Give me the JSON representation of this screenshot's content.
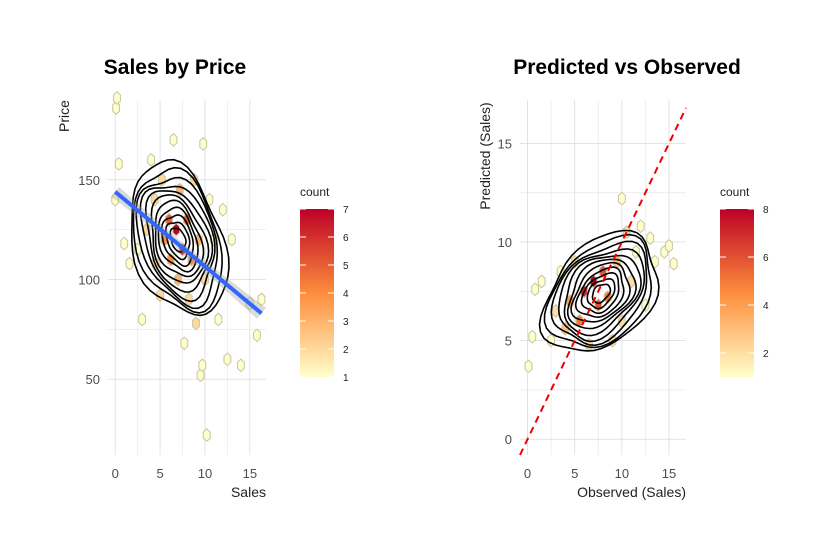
{
  "chart_data": [
    {
      "type": "scatter",
      "subtype": "hexbin-density-contour-with-regression",
      "title": "Sales by Price",
      "xlabel": "Sales",
      "ylabel": "Price",
      "xlim": [
        -0.8,
        16.8
      ],
      "ylim": [
        12,
        190
      ],
      "xticks": [
        0,
        5,
        10,
        15
      ],
      "yticks": [
        50,
        100,
        150
      ],
      "grid": true,
      "legend": {
        "title": "count",
        "position": "right",
        "min": 1,
        "max": 7,
        "ticks": [
          1,
          2,
          3,
          4,
          5,
          6,
          7
        ]
      },
      "colors": {
        "low": "#ffffcc",
        "mid": "#fd8d3c",
        "high": "#bd0026",
        "regression": "#3366ff",
        "contour": "#000000"
      },
      "density_center": [
        7.0,
        120
      ],
      "density_spread": [
        2.4,
        17
      ],
      "density_correlation": -0.3,
      "regression_line": {
        "x": [
          0,
          16.3
        ],
        "y": [
          144,
          83
        ]
      },
      "hexbins": [
        {
          "x": 0.0,
          "y": 140,
          "count": 1
        },
        {
          "x": 0.1,
          "y": 186,
          "count": 1
        },
        {
          "x": 0.2,
          "y": 191,
          "count": 1
        },
        {
          "x": 0.4,
          "y": 158,
          "count": 1
        },
        {
          "x": 1.0,
          "y": 118,
          "count": 1
        },
        {
          "x": 1.6,
          "y": 108,
          "count": 1
        },
        {
          "x": 2.5,
          "y": 115,
          "count": 1
        },
        {
          "x": 3.0,
          "y": 80,
          "count": 1
        },
        {
          "x": 3.5,
          "y": 125,
          "count": 2
        },
        {
          "x": 4.0,
          "y": 160,
          "count": 1
        },
        {
          "x": 4.4,
          "y": 140,
          "count": 2
        },
        {
          "x": 4.5,
          "y": 108,
          "count": 2
        },
        {
          "x": 5.0,
          "y": 92,
          "count": 2
        },
        {
          "x": 5.2,
          "y": 150,
          "count": 2
        },
        {
          "x": 5.5,
          "y": 120,
          "count": 4
        },
        {
          "x": 6.0,
          "y": 130,
          "count": 5
        },
        {
          "x": 6.2,
          "y": 110,
          "count": 4
        },
        {
          "x": 6.5,
          "y": 170,
          "count": 1
        },
        {
          "x": 6.8,
          "y": 125,
          "count": 7
        },
        {
          "x": 7.0,
          "y": 100,
          "count": 3
        },
        {
          "x": 7.2,
          "y": 145,
          "count": 3
        },
        {
          "x": 7.5,
          "y": 115,
          "count": 6
        },
        {
          "x": 7.7,
          "y": 68,
          "count": 1
        },
        {
          "x": 8.0,
          "y": 130,
          "count": 5
        },
        {
          "x": 8.2,
          "y": 90,
          "count": 2
        },
        {
          "x": 8.5,
          "y": 110,
          "count": 4
        },
        {
          "x": 8.8,
          "y": 150,
          "count": 2
        },
        {
          "x": 9.0,
          "y": 78,
          "count": 2
        },
        {
          "x": 9.3,
          "y": 120,
          "count": 3
        },
        {
          "x": 9.5,
          "y": 52,
          "count": 1
        },
        {
          "x": 9.7,
          "y": 57,
          "count": 1
        },
        {
          "x": 9.8,
          "y": 168,
          "count": 1
        },
        {
          "x": 10.0,
          "y": 100,
          "count": 2
        },
        {
          "x": 10.2,
          "y": 22,
          "count": 1
        },
        {
          "x": 10.5,
          "y": 140,
          "count": 1
        },
        {
          "x": 11.0,
          "y": 120,
          "count": 1
        },
        {
          "x": 11.5,
          "y": 80,
          "count": 1
        },
        {
          "x": 12.0,
          "y": 135,
          "count": 1
        },
        {
          "x": 12.5,
          "y": 60,
          "count": 1
        },
        {
          "x": 13.0,
          "y": 120,
          "count": 1
        },
        {
          "x": 14.0,
          "y": 57,
          "count": 1
        },
        {
          "x": 15.0,
          "y": 88,
          "count": 1
        },
        {
          "x": 15.8,
          "y": 72,
          "count": 1
        },
        {
          "x": 16.3,
          "y": 90,
          "count": 1
        }
      ]
    },
    {
      "type": "scatter",
      "subtype": "hexbin-density-contour-with-identity-line",
      "title": "Predicted vs Observed",
      "xlabel": "Observed (Sales)",
      "ylabel": "Predicted (Sales)",
      "xlim": [
        -0.8,
        16.8
      ],
      "ylim": [
        -0.8,
        17.2
      ],
      "xticks": [
        0,
        5,
        10,
        15
      ],
      "yticks": [
        0,
        5,
        10,
        15
      ],
      "grid": true,
      "legend": {
        "title": "count",
        "position": "right",
        "min": 1,
        "max": 8,
        "ticks": [
          2,
          4,
          6,
          8
        ]
      },
      "colors": {
        "low": "#ffffcc",
        "mid": "#fd8d3c",
        "high": "#bd0026",
        "identity": "#ee0000",
        "contour": "#000000"
      },
      "density_center": [
        7.8,
        7.4
      ],
      "density_spread": [
        2.7,
        1.35
      ],
      "density_correlation": 0.35,
      "identity_line": {
        "x": [
          -0.8,
          16.8
        ],
        "y": [
          -0.8,
          16.8
        ]
      },
      "hexbins": [
        {
          "x": 0.1,
          "y": 3.7,
          "count": 1
        },
        {
          "x": 0.5,
          "y": 5.2,
          "count": 1
        },
        {
          "x": 0.8,
          "y": 7.6,
          "count": 1
        },
        {
          "x": 1.5,
          "y": 8.0,
          "count": 1
        },
        {
          "x": 2.5,
          "y": 5.0,
          "count": 1
        },
        {
          "x": 3.0,
          "y": 6.5,
          "count": 2
        },
        {
          "x": 3.5,
          "y": 8.5,
          "count": 1
        },
        {
          "x": 4.0,
          "y": 5.6,
          "count": 3
        },
        {
          "x": 4.5,
          "y": 7.0,
          "count": 4
        },
        {
          "x": 5.0,
          "y": 9.0,
          "count": 2
        },
        {
          "x": 5.5,
          "y": 6.0,
          "count": 5
        },
        {
          "x": 6.0,
          "y": 7.5,
          "count": 7
        },
        {
          "x": 6.5,
          "y": 4.8,
          "count": 2
        },
        {
          "x": 7.0,
          "y": 8.0,
          "count": 8
        },
        {
          "x": 7.5,
          "y": 6.8,
          "count": 6
        },
        {
          "x": 8.0,
          "y": 8.5,
          "count": 6
        },
        {
          "x": 8.5,
          "y": 7.2,
          "count": 5
        },
        {
          "x": 9.0,
          "y": 5.0,
          "count": 2
        },
        {
          "x": 9.5,
          "y": 9.0,
          "count": 3
        },
        {
          "x": 10.0,
          "y": 12.2,
          "count": 1
        },
        {
          "x": 10.0,
          "y": 6.0,
          "count": 2
        },
        {
          "x": 10.5,
          "y": 10.5,
          "count": 2
        },
        {
          "x": 11.0,
          "y": 8.0,
          "count": 2
        },
        {
          "x": 11.5,
          "y": 9.5,
          "count": 1
        },
        {
          "x": 12.0,
          "y": 10.8,
          "count": 1
        },
        {
          "x": 12.5,
          "y": 6.8,
          "count": 1
        },
        {
          "x": 13.0,
          "y": 10.2,
          "count": 1
        },
        {
          "x": 13.5,
          "y": 9.0,
          "count": 1
        },
        {
          "x": 14.5,
          "y": 9.5,
          "count": 1
        },
        {
          "x": 15.0,
          "y": 9.8,
          "count": 1
        },
        {
          "x": 15.5,
          "y": 8.9,
          "count": 1
        }
      ]
    }
  ]
}
